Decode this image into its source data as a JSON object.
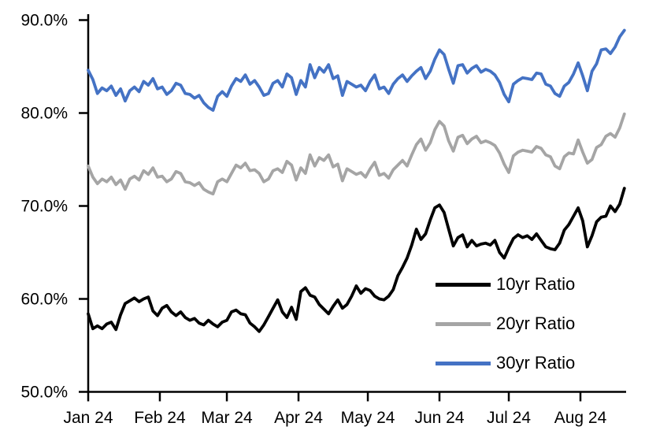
{
  "chart_data": {
    "type": "line",
    "title": "",
    "xlabel": "",
    "ylabel": "",
    "y_axis": {
      "min": 50,
      "max": 90,
      "tick_values": [
        50,
        60,
        70,
        80,
        90
      ],
      "tick_labels": [
        "50.0%",
        "60.0%",
        "70.0%",
        "80.0%",
        "90.0%"
      ],
      "grid": false
    },
    "x_axis": {
      "tick_labels": [
        "Jan 24",
        "Feb 24",
        "Mar 24",
        "Apr 24",
        "May 24",
        "Jun 24",
        "Jul 24",
        "Aug 24"
      ],
      "tick_day_offsets": [
        0,
        31,
        60,
        91,
        121,
        152,
        182,
        213
      ],
      "days_total": 232,
      "sample_interval_days": 2
    },
    "legend_position": "inside-lower-right",
    "series": [
      {
        "name": "10yr Ratio",
        "color": "#000000",
        "values": [
          58.4,
          56.8,
          57.1,
          56.8,
          57.3,
          57.5,
          56.7,
          58.3,
          59.5,
          59.8,
          60.1,
          59.7,
          60.0,
          60.2,
          58.7,
          58.2,
          59.0,
          59.3,
          58.6,
          58.2,
          58.6,
          58.0,
          57.7,
          57.9,
          57.4,
          57.2,
          57.7,
          57.3,
          57.0,
          57.5,
          57.7,
          58.6,
          58.8,
          58.4,
          58.3,
          57.4,
          57.0,
          56.5,
          57.2,
          58.1,
          59.0,
          59.9,
          58.6,
          58.0,
          59.1,
          57.8,
          60.8,
          61.2,
          60.4,
          60.2,
          59.4,
          58.9,
          58.4,
          59.2,
          59.9,
          59.0,
          59.4,
          60.3,
          61.4,
          60.6,
          61.1,
          60.9,
          60.3,
          60.0,
          59.9,
          60.3,
          61.0,
          62.5,
          63.4,
          64.4,
          65.8,
          67.5,
          66.4,
          67.0,
          68.5,
          69.8,
          70.1,
          69.3,
          67.5,
          65.7,
          66.6,
          66.9,
          65.6,
          66.3,
          65.7,
          65.9,
          66.0,
          65.8,
          66.3,
          65.0,
          64.4,
          65.5,
          66.5,
          66.9,
          66.6,
          66.8,
          66.4,
          67.0,
          66.3,
          65.6,
          65.4,
          65.3,
          66.0,
          67.4,
          68.0,
          68.9,
          69.8,
          68.4,
          65.6,
          66.8,
          68.3,
          68.8,
          68.9,
          70.0,
          69.4,
          70.2,
          71.9
        ]
      },
      {
        "name": "20yr Ratio",
        "color": "#A5A5A5",
        "values": [
          74.3,
          73.1,
          72.4,
          72.9,
          72.6,
          73.1,
          72.3,
          72.8,
          71.8,
          72.9,
          73.2,
          72.8,
          73.8,
          73.4,
          74.1,
          73.1,
          73.2,
          72.6,
          72.9,
          73.7,
          73.5,
          72.6,
          72.5,
          72.2,
          72.5,
          71.8,
          71.5,
          71.3,
          72.6,
          72.9,
          72.6,
          73.5,
          74.4,
          74.1,
          74.6,
          73.8,
          73.9,
          73.5,
          72.6,
          72.9,
          73.8,
          74.0,
          73.6,
          74.8,
          74.4,
          72.8,
          74.1,
          73.5,
          75.5,
          74.3,
          75.2,
          74.9,
          75.5,
          74.2,
          74.5,
          72.7,
          74.0,
          73.7,
          73.4,
          73.6,
          73.1,
          74.0,
          74.7,
          73.3,
          73.5,
          73.0,
          73.9,
          74.4,
          74.9,
          74.3,
          75.5,
          76.6,
          77.2,
          76.0,
          76.8,
          78.2,
          79.1,
          78.6,
          77.0,
          75.9,
          77.4,
          77.6,
          76.7,
          77.2,
          77.5,
          76.8,
          77.0,
          76.8,
          76.5,
          75.7,
          74.5,
          73.6,
          75.4,
          75.8,
          76.0,
          75.9,
          75.8,
          76.4,
          76.2,
          75.5,
          75.3,
          74.3,
          74.0,
          75.3,
          75.7,
          75.6,
          77.1,
          75.8,
          74.6,
          75.0,
          76.3,
          76.6,
          77.5,
          77.8,
          77.4,
          78.4,
          79.9
        ]
      },
      {
        "name": "30yr Ratio",
        "color": "#4472C4",
        "values": [
          84.6,
          83.6,
          82.1,
          82.7,
          82.4,
          82.9,
          81.9,
          82.6,
          81.3,
          82.4,
          82.8,
          82.3,
          83.4,
          83.0,
          83.7,
          82.6,
          82.8,
          82.0,
          82.4,
          83.2,
          83.0,
          82.1,
          82.0,
          81.6,
          81.9,
          81.1,
          80.6,
          80.3,
          81.8,
          82.3,
          81.8,
          82.9,
          83.7,
          83.4,
          84.1,
          83.1,
          83.5,
          82.8,
          81.9,
          82.1,
          83.2,
          83.5,
          82.8,
          84.2,
          83.8,
          82.0,
          83.5,
          82.8,
          85.2,
          83.8,
          84.9,
          84.4,
          85.2,
          83.7,
          84.0,
          81.9,
          83.4,
          83.1,
          82.8,
          83.0,
          82.4,
          83.4,
          84.1,
          82.6,
          82.8,
          82.1,
          83.1,
          83.7,
          84.1,
          83.4,
          84.0,
          84.5,
          84.9,
          83.7,
          84.5,
          85.8,
          86.8,
          86.3,
          84.7,
          83.2,
          85.1,
          85.2,
          84.3,
          84.8,
          85.1,
          84.4,
          84.7,
          84.5,
          84.1,
          83.3,
          82.0,
          81.2,
          83.1,
          83.5,
          83.8,
          83.7,
          83.6,
          84.3,
          84.2,
          83.1,
          82.9,
          82.1,
          81.8,
          82.9,
          83.3,
          84.2,
          85.4,
          84.0,
          82.4,
          84.5,
          85.3,
          86.8,
          86.9,
          86.4,
          87.1,
          88.2,
          88.9
        ]
      }
    ]
  }
}
